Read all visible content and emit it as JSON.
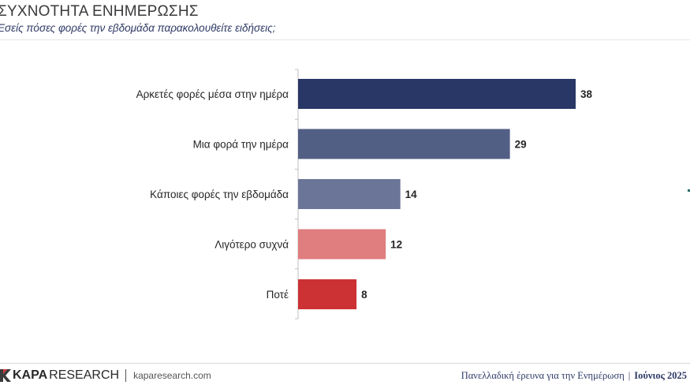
{
  "header": {
    "title": "ΣΥΧΝΟΤΗΤΑ ΕΝΗΜΕΡΩΣΗΣ",
    "subtitle": "Εσείς πόσες φορές την εβδομάδα παρακολουθείτε ειδήσεις;"
  },
  "chart_data": {
    "type": "bar",
    "orientation": "horizontal",
    "categories": [
      "Αρκετές φορές μέσα στην ημέρα",
      "Μια φορά την ημέρα",
      "Κάποιες φορές την εβδομάδα",
      "Λιγότερο συχνά",
      "Ποτέ"
    ],
    "values": [
      38,
      29,
      14,
      12,
      8
    ],
    "colors": [
      "#283765",
      "#525f85",
      "#6a7597",
      "#df7d7f",
      "#cc3134"
    ],
    "title": "ΣΥΧΝΟΤΗΤΑ ΕΝΗΜΕΡΩΣΗΣ",
    "xlabel": "",
    "ylabel": "",
    "grid": false,
    "data_labels": true
  },
  "footer": {
    "logo_bold": "KAPA",
    "logo_rest": "RESEARCH",
    "website": "kaparesearch.com",
    "survey": "Πανελλαδική έρευνα για την Ενημέρωση",
    "separator": "|",
    "date": "Ιούνιος 2025"
  }
}
